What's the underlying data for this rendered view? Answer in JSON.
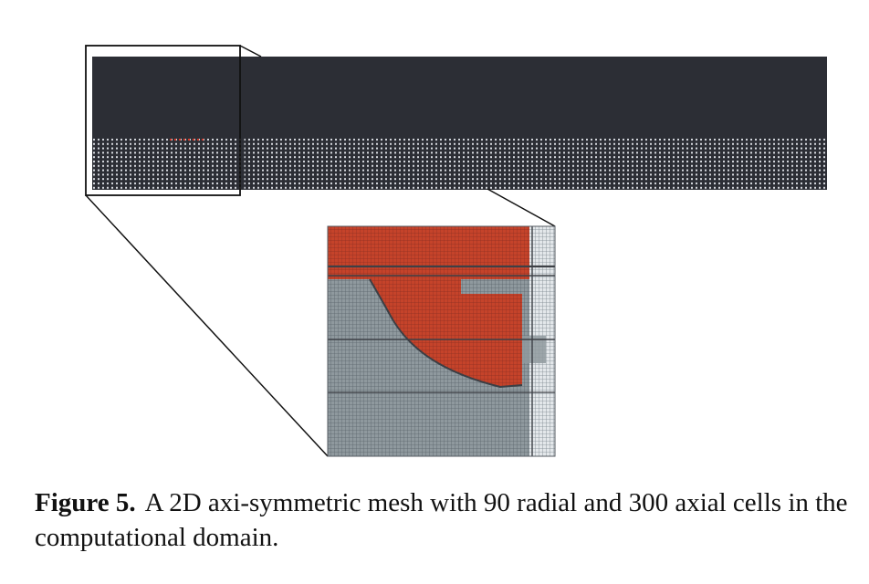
{
  "figure": {
    "colors": {
      "domain_dark": "#2c2e35",
      "mesh_dot": "#d9dce2",
      "highlight_dot": "#d23a2a",
      "zoom_grid_gray": "#8f999e",
      "zoom_grid_line": "#4f5962",
      "zoom_red": "#c5432a",
      "zoom_red_line": "#7d2a1f",
      "zoom_light_band": "#c9cfd4",
      "callout_line": "#111111"
    }
  },
  "caption": {
    "label": "Figure 5.",
    "text": "A 2D axi-symmetric mesh with 90 radial and 300 axial cells in the computational domain."
  }
}
